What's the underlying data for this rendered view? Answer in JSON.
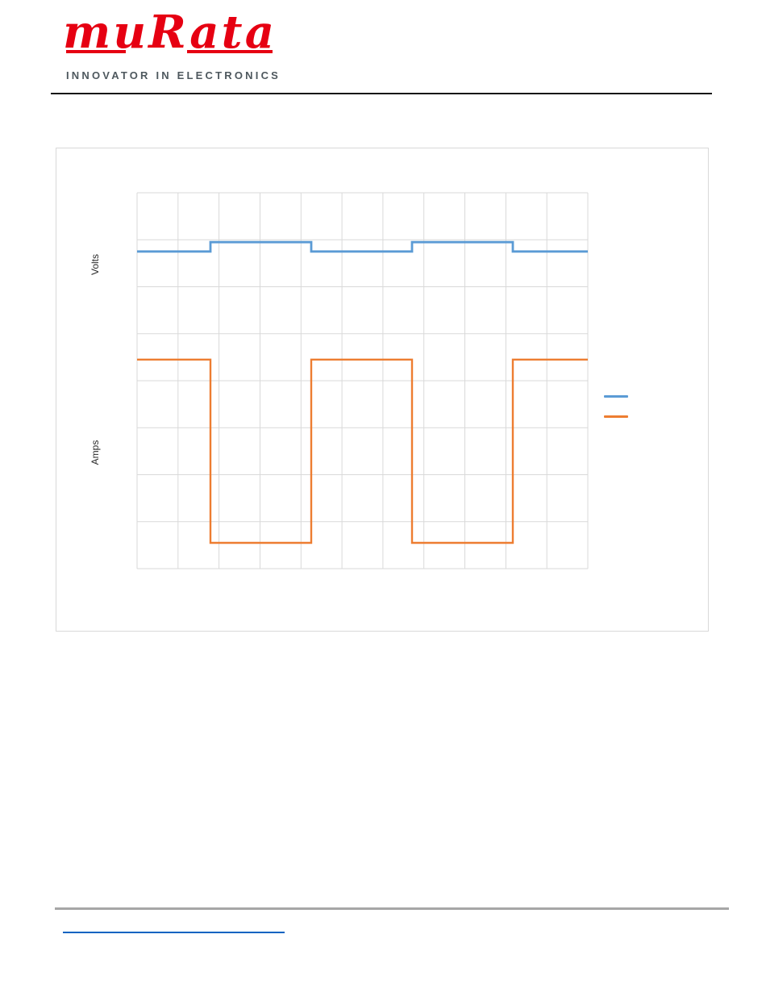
{
  "header": {
    "logo_text": "muRata",
    "tagline": "INNOVATOR IN ELECTRONICS",
    "brand_color": "#E60012",
    "tagline_color": "#4E585E"
  },
  "chart": {
    "volts_label": "Volts",
    "amps_label": "Amps",
    "grid_color": "#D9D9D9",
    "border_color": "#D9D9D9",
    "legend": {
      "items": [
        {
          "series": "Volts",
          "color": "#5B9BD5"
        },
        {
          "series": "Amps",
          "color": "#ED7D31"
        }
      ]
    }
  },
  "chart_data": {
    "type": "line",
    "title": "",
    "xlabel": "",
    "ylabel_upper": "Volts",
    "ylabel_lower": "Amps",
    "x_range_divisions": [
      0,
      11
    ],
    "y_range_divisions": [
      0,
      8
    ],
    "grid": true,
    "tick_labels": "none",
    "legend_position": "right-middle",
    "series": [
      {
        "name": "Volts",
        "color": "#5B9BD5",
        "width": 2.8,
        "shape": "square-wave",
        "points_div": [
          [
            0,
            1.25
          ],
          [
            1.79,
            1.25
          ],
          [
            1.79,
            1.05
          ],
          [
            4.25,
            1.05
          ],
          [
            4.25,
            1.25
          ],
          [
            6.71,
            1.25
          ],
          [
            6.71,
            1.05
          ],
          [
            9.17,
            1.05
          ],
          [
            9.17,
            1.25
          ],
          [
            11,
            1.25
          ]
        ]
      },
      {
        "name": "Amps",
        "color": "#ED7D31",
        "width": 2.4,
        "shape": "square-wave",
        "points_div": [
          [
            0,
            3.55
          ],
          [
            1.79,
            3.55
          ],
          [
            1.79,
            7.45
          ],
          [
            4.25,
            7.45
          ],
          [
            4.25,
            3.55
          ],
          [
            6.71,
            3.55
          ],
          [
            6.71,
            7.45
          ],
          [
            9.17,
            7.45
          ],
          [
            9.17,
            3.55
          ],
          [
            11,
            3.55
          ]
        ]
      }
    ]
  },
  "footer": {
    "rule_color": "#A6A6A6",
    "link_underline_color": "#0563C1"
  }
}
